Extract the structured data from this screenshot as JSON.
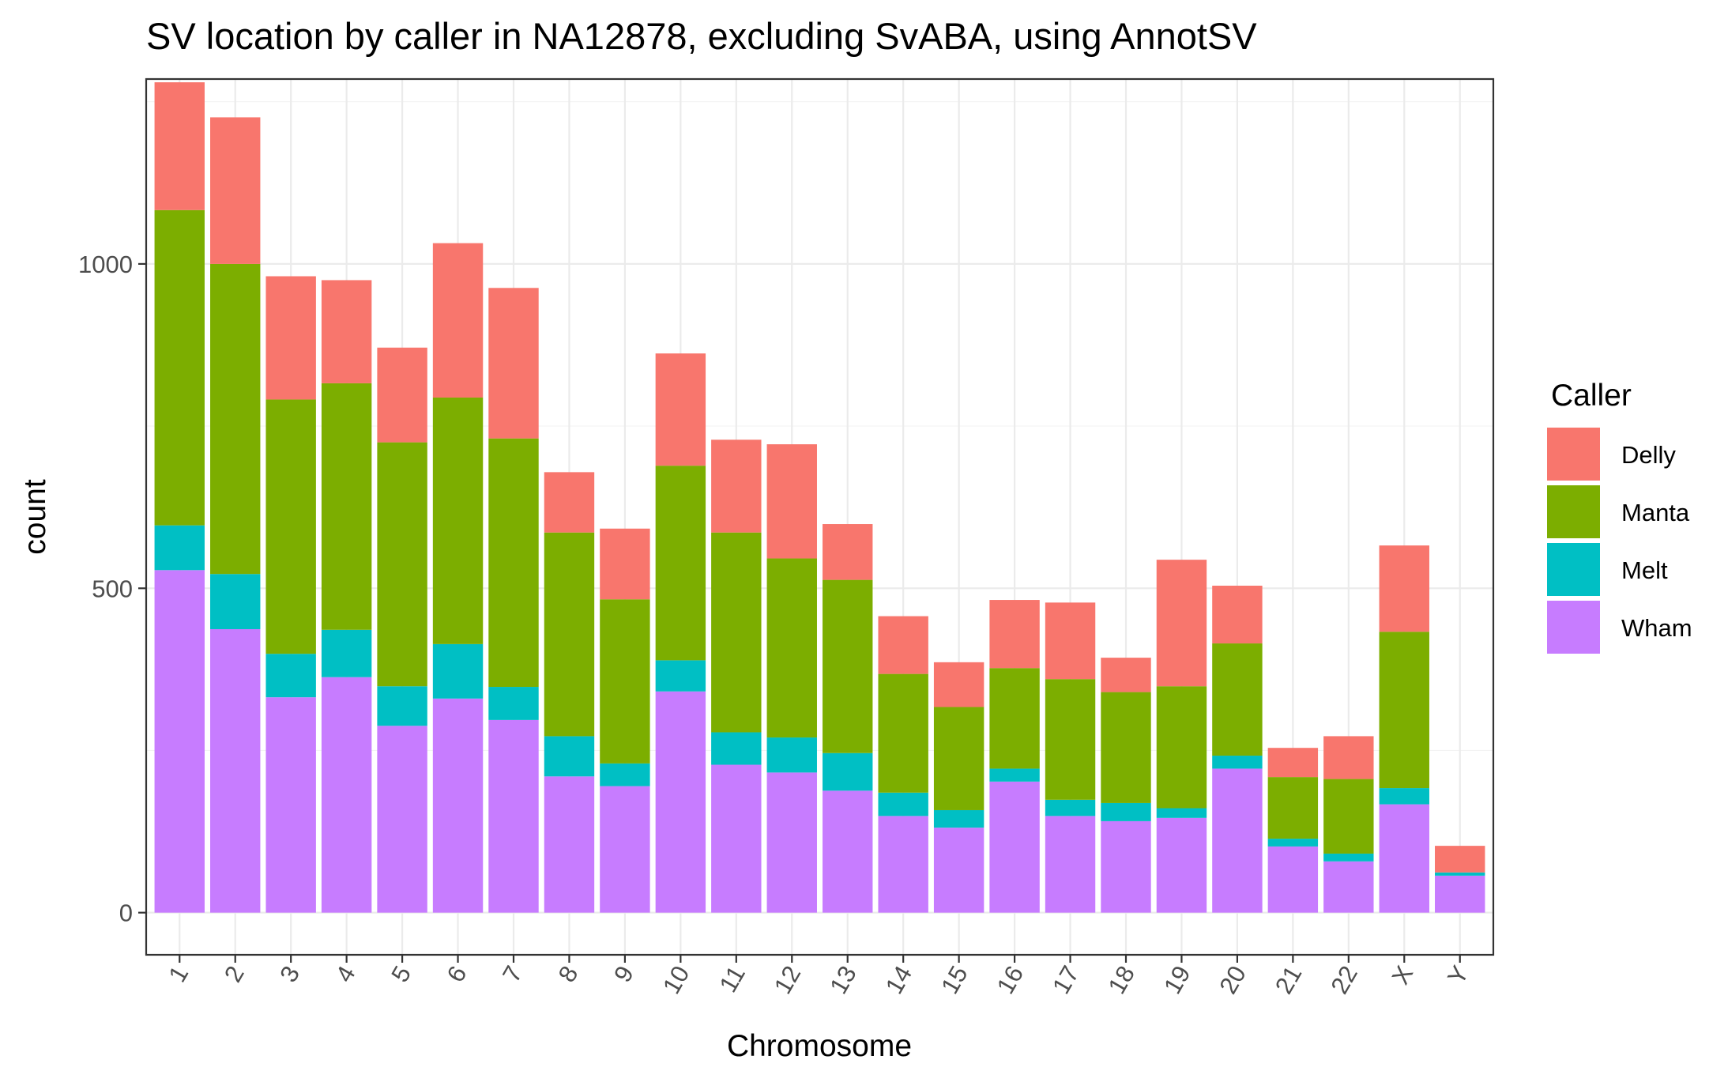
{
  "chart_data": {
    "type": "bar",
    "stacked": true,
    "title": "SV location by caller in NA12878, excluding SvABA, using AnnotSV",
    "xlabel": "Chromosome",
    "ylabel": "count",
    "ylim": [
      -65,
      1285
    ],
    "yticks": [
      0,
      500,
      1000
    ],
    "grid": true,
    "legend_position": "right",
    "legend_title": "Caller",
    "categories": [
      "1",
      "2",
      "3",
      "4",
      "5",
      "6",
      "7",
      "8",
      "9",
      "10",
      "11",
      "12",
      "13",
      "14",
      "15",
      "16",
      "17",
      "18",
      "19",
      "20",
      "21",
      "22",
      "X",
      "Y"
    ],
    "series": [
      {
        "name": "Wham",
        "color": "#C77CFF",
        "values": [
          528,
          437,
          332,
          363,
          288,
          330,
          297,
          210,
          195,
          341,
          228,
          216,
          188,
          149,
          131,
          202,
          149,
          141,
          146,
          222,
          102,
          79,
          167,
          57
        ]
      },
      {
        "name": "Melt",
        "color": "#00BFC4",
        "values": [
          69,
          85,
          67,
          73,
          61,
          84,
          51,
          62,
          35,
          48,
          50,
          54,
          58,
          36,
          27,
          20,
          25,
          28,
          15,
          20,
          12,
          12,
          25,
          5
        ]
      },
      {
        "name": "Manta",
        "color": "#7CAE00",
        "values": [
          486,
          478,
          392,
          380,
          376,
          380,
          383,
          314,
          253,
          300,
          308,
          276,
          267,
          183,
          159,
          155,
          186,
          171,
          188,
          173,
          95,
          115,
          241,
          0
        ]
      },
      {
        "name": "Delly",
        "color": "#F8766D",
        "values": [
          197,
          226,
          190,
          159,
          146,
          238,
          232,
          93,
          109,
          173,
          143,
          176,
          86,
          89,
          69,
          105,
          118,
          53,
          195,
          89,
          45,
          66,
          133,
          41
        ]
      }
    ]
  }
}
